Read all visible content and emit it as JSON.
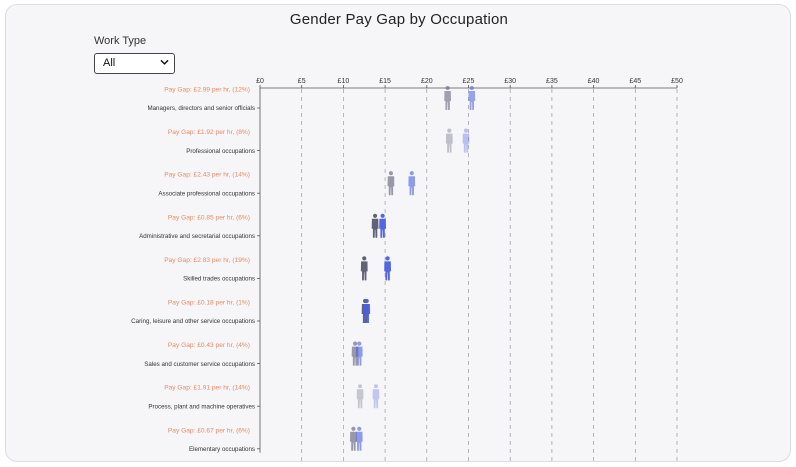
{
  "page": {
    "title": "Gender Pay Gap by Occupation",
    "filter": {
      "label": "Work Type",
      "selected": "All"
    }
  },
  "chart_data": {
    "type": "scatter",
    "title": "Gender Pay Gap by Occupation",
    "x_axis": {
      "min": 0,
      "max": 50,
      "ticks": [
        "£0",
        "£5",
        "£10",
        "£15",
        "£20",
        "£25",
        "£30",
        "£35",
        "£40",
        "£45",
        "£50"
      ],
      "grid": "dashed vertical"
    },
    "colors": {
      "accent_text": "#e58a62",
      "female_icons": "#5a5a72",
      "male_icons": "#4a5fe0"
    },
    "rows": [
      {
        "occupation": "Managers, directors and senior officials",
        "gap_label": "Pay Gap: £2.99 per hr, (12%)",
        "women_hourly": 22.5,
        "men_hourly": 25.4,
        "opacity": 0.55
      },
      {
        "occupation": "Professional occupations",
        "gap_label": "Pay Gap: £1.92 per hr, (8%)",
        "women_hourly": 22.7,
        "men_hourly": 24.7,
        "opacity": 0.35
      },
      {
        "occupation": "Associate professional occupations",
        "gap_label": "Pay Gap: £2.43 per hr, (14%)",
        "women_hourly": 15.7,
        "men_hourly": 18.2,
        "opacity": 0.6
      },
      {
        "occupation": "Administrative and secretarial occupations",
        "gap_label": "Pay Gap: £0.85 per hr, (6%)",
        "women_hourly": 13.8,
        "men_hourly": 14.7,
        "opacity": 0.95
      },
      {
        "occupation": "Skilled trades occupations",
        "gap_label": "Pay Gap: £2.83 per hr, (19%)",
        "women_hourly": 12.5,
        "men_hourly": 15.3,
        "opacity": 0.95
      },
      {
        "occupation": "Caring, leisure and other service occupations",
        "gap_label": "Pay Gap: £0.18 per hr, (1%)",
        "women_hourly": 12.6,
        "men_hourly": 12.8,
        "opacity": 0.95
      },
      {
        "occupation": "Sales and customer service occupations",
        "gap_label": "Pay Gap: £0.43 per hr, (4%)",
        "women_hourly": 11.4,
        "men_hourly": 11.9,
        "opacity": 0.6
      },
      {
        "occupation": "Process, plant and machine operatives",
        "gap_label": "Pay Gap: £1.91 per hr, (14%)",
        "women_hourly": 12.0,
        "men_hourly": 13.9,
        "opacity": 0.3
      },
      {
        "occupation": "Elementary occupations",
        "gap_label": "Pay Gap: £0.67 per hr, (6%)",
        "women_hourly": 11.2,
        "men_hourly": 11.9,
        "opacity": 0.6
      }
    ]
  }
}
